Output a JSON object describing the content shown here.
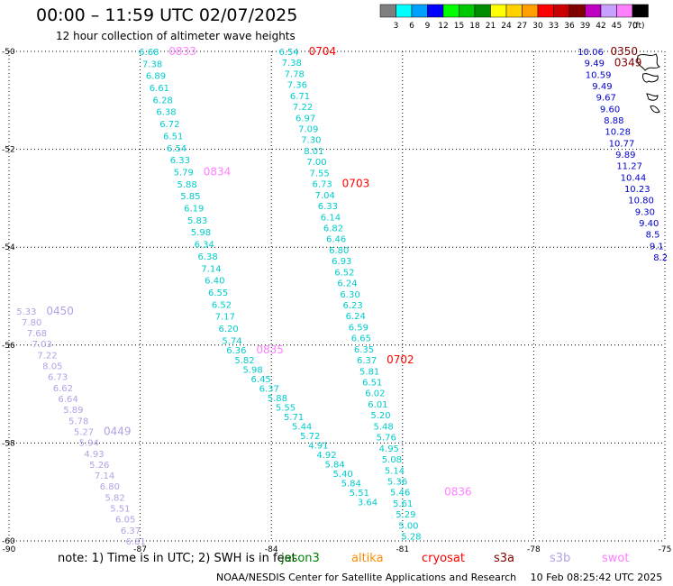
{
  "title": "00:00 – 11:59 UTC 02/07/2025",
  "subtitle": "12 hour collection of altimeter wave heights",
  "colorbar": {
    "labels": [
      "3",
      "6",
      "9",
      "12",
      "15",
      "18",
      "21",
      "24",
      "27",
      "30",
      "33",
      "36",
      "39",
      "42",
      "45",
      "70"
    ],
    "unit": "(ft)",
    "colors": [
      "#7f7f7f",
      "#00ffff",
      "#00a0ff",
      "#0000ff",
      "#00ff00",
      "#00c800",
      "#008c00",
      "#ffff00",
      "#ffd200",
      "#ffa000",
      "#ff0000",
      "#c80000",
      "#800000",
      "#c000c0",
      "#c8a0ff",
      "#ff80ff",
      "#000000"
    ]
  },
  "note": "note:  1) Time is in UTC;  2) SWH is in feet",
  "satellites": [
    {
      "name": "jason3",
      "color": "#008000"
    },
    {
      "name": "altika",
      "color": "#ff8c00"
    },
    {
      "name": "cryosat",
      "color": "#ff0000"
    },
    {
      "name": "s3a",
      "color": "#800000"
    },
    {
      "name": "s3b",
      "color": "#b4a0e6"
    },
    {
      "name": "swot",
      "color": "#ff80ff"
    }
  ],
  "footer": {
    "credit": "NOAA/NESDIS Center for Satellite Applications and Research",
    "timestamp": "10 Feb 08:25:42 UTC 2025"
  },
  "chart_data": {
    "type": "scatter",
    "xlim": [
      -90,
      -75
    ],
    "ylim": [
      -60,
      -50
    ],
    "x_ticks": [
      "-90",
      "-87",
      "-84",
      "-81",
      "-78",
      "-75"
    ],
    "y_ticks": [
      "-50",
      "-52",
      "-54",
      "-56",
      "-58",
      "-60"
    ],
    "tracks": [
      {
        "color": "#00cccc",
        "label": "0833",
        "label_color": "#ff80ff",
        "start": [
          -86.8,
          -50.0
        ],
        "end": [
          -84.9,
          -55.9
        ],
        "values": [
          "6.68",
          "7.38",
          "6.89",
          "6.61",
          "6.28",
          "6.38",
          "6.72",
          "6.51",
          "6.54",
          "6.33",
          "5.79",
          "5.88",
          "5.85",
          "6.19",
          "5.83",
          "5.98",
          "6.34",
          "6.38",
          "7.14",
          "6.40",
          "6.55",
          "6.52",
          "7.17",
          "6.20",
          "5.74"
        ]
      },
      {
        "color": "#00cccc",
        "label": "0834",
        "label_color": "#ff80ff",
        "anchor_index": 10
      },
      {
        "color": "#00cccc",
        "label": "0835",
        "label_color": "#ff80ff",
        "start": [
          -84.8,
          -56.1
        ],
        "end": [
          -81.8,
          -59.2
        ],
        "values": [
          "6.36",
          "5.82",
          "5.98",
          "6.45",
          "6.37",
          "5.88",
          "5.55",
          "5.71",
          "5.44",
          "5.72",
          "4.91",
          "4.92",
          "5.84",
          "5.40",
          "5.84",
          "5.51",
          "3.64"
        ]
      },
      {
        "color": "#00cccc",
        "label": "0836",
        "label_color": "#ff80ff",
        "anchor": [
          -80.5,
          -59.0
        ]
      },
      {
        "color": "#00cccc",
        "label": "0704",
        "label_color": "#ff0000",
        "start": [
          -83.6,
          -50.0
        ],
        "end": [
          -80.8,
          -59.9
        ],
        "values": [
          "6.54",
          "7.38",
          "7.78",
          "7.36",
          "6.71",
          "7.22",
          "6.97",
          "7.09",
          "7.30",
          "8.01",
          "7.00",
          "7.55",
          "6.73",
          "7.04",
          "6.33",
          "6.14",
          "6.82",
          "6.46",
          "6.80",
          "6.93",
          "6.52",
          "6.24",
          "6.30",
          "6.23",
          "6.24",
          "6.59",
          "6.65",
          "6.35",
          "6.37",
          "5.81",
          "6.51",
          "6.02",
          "6.01",
          "5.20",
          "5.48",
          "5.76",
          "4.95",
          "5.08",
          "5.14",
          "5.36",
          "5.46",
          "5.61",
          "5.29",
          "5.00",
          "5.28"
        ]
      },
      {
        "color": "#00cccc",
        "label": "0703",
        "label_color": "#ff0000",
        "anchor_index": 12
      },
      {
        "color": "#00cccc",
        "label": "0702",
        "label_color": "#ff0000",
        "anchor_index": 28
      },
      {
        "color": "#b4a0e6",
        "label": "0450",
        "label_color": "#b4a0e6",
        "start": [
          -89.6,
          -55.3
        ],
        "end": [
          -87.1,
          -60.0
        ],
        "values": [
          "5.33",
          "7.80",
          "7.68",
          "7.03",
          "7.22",
          "8.05",
          "6.73",
          "6.62",
          "6.64",
          "5.89",
          "5.78",
          "5.27",
          "5.94",
          "4.93",
          "5.26",
          "7.14",
          "6.80",
          "5.82",
          "5.51",
          "6.05",
          "6.37",
          "6.81"
        ]
      },
      {
        "color": "#b4a0e6",
        "label": "0449",
        "label_color": "#b4a0e6",
        "anchor_index": 11
      },
      {
        "color": "#0000cc",
        "label": "0350",
        "label_color": "#800000",
        "start": [
          -76.7,
          -50.0
        ],
        "end": [
          -75.1,
          -54.2
        ],
        "values": [
          "10.06",
          "9.49",
          "10.59",
          "9.49",
          "9.67",
          "9.60",
          "8.88",
          "10.28",
          "10.77",
          "9.89",
          "11.27",
          "10.44",
          "10.23",
          "10.80",
          "9.30",
          "9.40",
          "8.5",
          "9.1",
          "8.2"
        ]
      },
      {
        "color": "#0000cc",
        "label": "0349",
        "label_color": "#800000",
        "anchor_index": 1
      }
    ]
  }
}
